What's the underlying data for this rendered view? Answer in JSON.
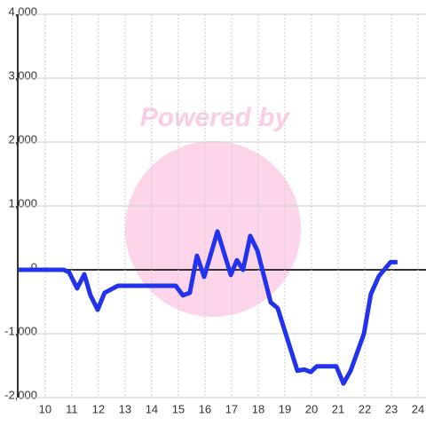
{
  "chart_data": {
    "type": "line",
    "watermark": "Powered by",
    "x": [
      9,
      10.7,
      10.9,
      11.2,
      11.47,
      11.7,
      11.97,
      12.23,
      12.73,
      14.9,
      15.17,
      15.43,
      15.7,
      15.97,
      16.47,
      16.97,
      17.2,
      17.43,
      17.7,
      17.97,
      18.47,
      18.73,
      19.47,
      19.73,
      19.97,
      20.2,
      20.93,
      21.2,
      21.47,
      21.97,
      22.23,
      22.53,
      22.97,
      23.23
    ],
    "series": [
      {
        "color": "#2233ee",
        "values": [
          0,
          0,
          -40,
          -290,
          -70,
          -400,
          -625,
          -360,
          -250,
          -250,
          -400,
          -360,
          220,
          -110,
          600,
          -80,
          150,
          0,
          530,
          300,
          -510,
          -600,
          -1580,
          -1560,
          -1600,
          -1510,
          -1510,
          -1780,
          -1580,
          -1000,
          -380,
          -100,
          120,
          120
        ]
      }
    ],
    "xlim": [
      8.97,
      24.3
    ],
    "xticks": [
      10,
      11,
      12,
      13,
      14,
      15,
      16,
      17,
      18,
      19,
      20,
      21,
      22,
      23,
      24
    ],
    "ylim": [
      -2000,
      4000
    ],
    "yticks": [
      {
        "value": -2000,
        "label": "-2,000"
      },
      {
        "value": -1000,
        "label": "-1,000"
      },
      0,
      {
        "value": 1000,
        "label": "1,000"
      },
      {
        "value": 2000,
        "label": "2,000"
      },
      {
        "value": 3000,
        "label": "3,000"
      },
      {
        "value": 4000,
        "label": "4,000"
      }
    ],
    "grid": true
  }
}
